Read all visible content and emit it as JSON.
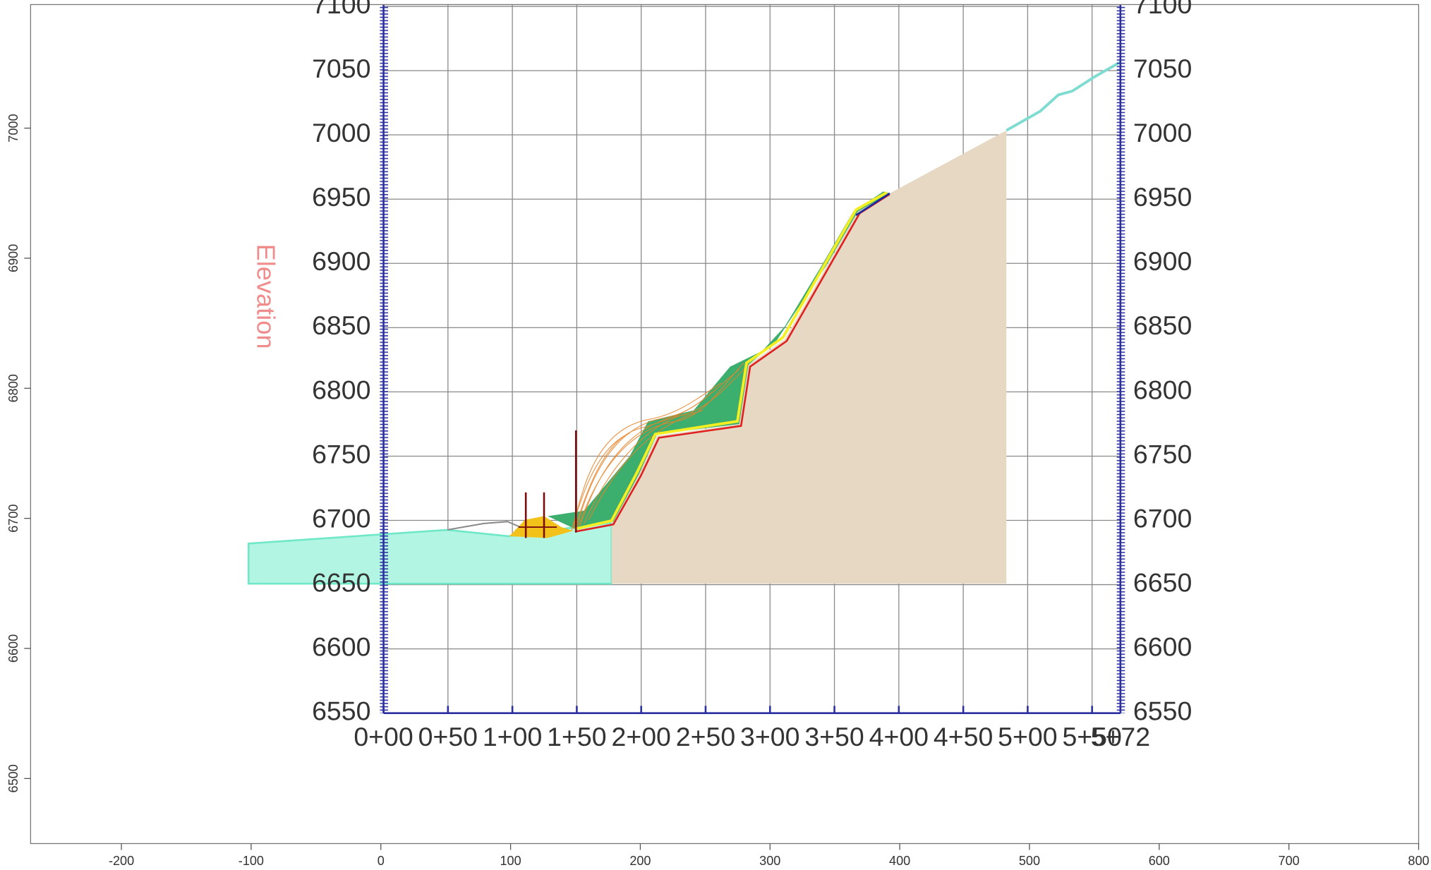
{
  "chart_data": [
    {
      "type": "section",
      "ylabel": "Elevation",
      "xlim": [
        0,
        572
      ],
      "ylim": [
        6550,
        7100
      ],
      "xticks": [
        {
          "value": 0,
          "label": "0+00"
        },
        {
          "value": 50,
          "label": "0+50"
        },
        {
          "value": 100,
          "label": "1+00"
        },
        {
          "value": 150,
          "label": "1+50"
        },
        {
          "value": 200,
          "label": "2+00"
        },
        {
          "value": 250,
          "label": "2+50"
        },
        {
          "value": 300,
          "label": "3+00"
        },
        {
          "value": 350,
          "label": "3+50"
        },
        {
          "value": 400,
          "label": "4+00"
        },
        {
          "value": 450,
          "label": "4+50"
        },
        {
          "value": 500,
          "label": "5+00"
        },
        {
          "value": 550,
          "label": "5+50"
        },
        {
          "value": 572,
          "label": "5+72"
        }
      ],
      "yticks": [
        6550,
        6600,
        6650,
        6700,
        6750,
        6800,
        6850,
        6900,
        6950,
        7000,
        7050,
        7100
      ],
      "grid": true
    },
    {
      "type": "frame",
      "xlim": [
        -270,
        800
      ],
      "ylim": [
        6450,
        7095
      ],
      "xticks": [
        -200,
        -100,
        0,
        100,
        200,
        300,
        400,
        500,
        600,
        700,
        800
      ],
      "yticks": [
        6500,
        6600,
        6700,
        6800,
        6900,
        7000
      ]
    }
  ]
}
